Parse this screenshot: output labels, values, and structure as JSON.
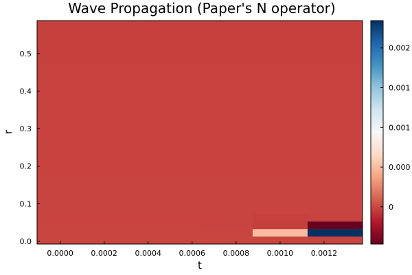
{
  "chart_data": {
    "type": "heatmap",
    "title": "Wave Propagation (Paper's N operator)",
    "xlabel": "t",
    "ylabel": "r",
    "xlim": [
      -0.000105,
      0.001375
    ],
    "ylim": [
      -0.0075,
      0.5875
    ],
    "x_ticks": [
      {
        "value": 0.0,
        "label": "0.0000"
      },
      {
        "value": 0.0002,
        "label": "0.0002"
      },
      {
        "value": 0.0004,
        "label": "0.0004"
      },
      {
        "value": 0.0006,
        "label": "0.0006"
      },
      {
        "value": 0.0008,
        "label": "0.0008"
      },
      {
        "value": 0.001,
        "label": "0.0010"
      },
      {
        "value": 0.0012,
        "label": "0.0012"
      }
    ],
    "y_ticks": [
      {
        "value": 0.0,
        "label": "0.0"
      },
      {
        "value": 0.1,
        "label": "0.1"
      },
      {
        "value": 0.2,
        "label": "0.2"
      },
      {
        "value": 0.3,
        "label": "0.3"
      },
      {
        "value": 0.4,
        "label": "0.4"
      },
      {
        "value": 0.5,
        "label": "0.5"
      }
    ],
    "t_centers": [
      0.0,
      0.00025,
      0.0005,
      0.00075,
      0.001,
      0.00125
    ],
    "r_bands": [
      {
        "r_min": -0.0075,
        "r_max": 0.0125,
        "values": [
          0.0,
          0.0,
          0.0,
          0.0,
          0.0,
          0.0
        ]
      },
      {
        "r_min": 0.0125,
        "r_max": 0.0325,
        "values": [
          0.0,
          0.0,
          0.0,
          0.0,
          0.00048,
          0.00225
        ]
      },
      {
        "r_min": 0.0325,
        "r_max": 0.0525,
        "values": [
          0.0,
          0.0,
          0.0,
          -1.5e-05,
          -3.5e-05,
          -0.00045
        ]
      },
      {
        "r_min": 0.0525,
        "r_max": 0.0725,
        "values": [
          0.0,
          0.0,
          0.0,
          0.0,
          -3e-05,
          -2e-05
        ]
      }
    ],
    "background_value_bottom": -1e-05,
    "background_value_top": -3e-05,
    "colormap": "RdBu",
    "colorbar": {
      "min": -0.00045,
      "max": 0.00225,
      "tick_values": [
        0.0,
        0.00048,
        0.00096,
        0.00144,
        0.00192
      ],
      "tick_labels": [
        "0",
        "0.000",
        "0.001",
        "0.001",
        "0.002"
      ]
    }
  }
}
